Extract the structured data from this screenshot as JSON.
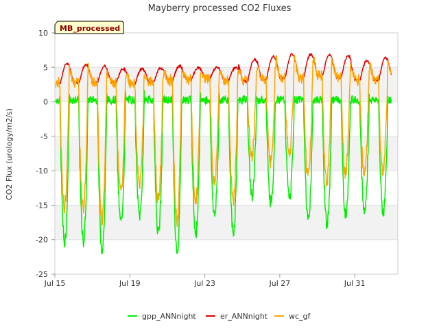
{
  "chart_data": {
    "type": "line",
    "title": "Mayberry processed CO2 Fluxes",
    "ylabel": "CO2 Flux (urology/m2/s)",
    "xlabel": "",
    "badge": "MB_processed",
    "ylim": [
      -25,
      10
    ],
    "yticks": [
      -25,
      -20,
      -15,
      -10,
      -5,
      0,
      5,
      10
    ],
    "xlim": [
      15,
      33.3
    ],
    "xticks": [
      {
        "value": 15,
        "label": "Jul 15"
      },
      {
        "value": 19,
        "label": "Jul 19"
      },
      {
        "value": 23,
        "label": "Jul 23"
      },
      {
        "value": 27,
        "label": "Jul 27"
      },
      {
        "value": 31,
        "label": "Jul 31"
      }
    ],
    "legend_position": "bottom",
    "grid": "horizontal-bands",
    "days": [
      {
        "day": 15.3,
        "gpp_min": -20.5,
        "er_max": 5.6,
        "er_min": 2.7,
        "wc_max": 5.5
      },
      {
        "day": 16.3,
        "gpp_min": -20.3,
        "er_max": 5.4,
        "er_min": 2.7,
        "wc_max": 6.2
      },
      {
        "day": 17.3,
        "gpp_min": -21.5,
        "er_max": 5.2,
        "er_min": 2.9,
        "wc_max": 4.5
      },
      {
        "day": 18.3,
        "gpp_min": -17.5,
        "er_max": 4.8,
        "er_min": 2.9,
        "wc_max": 3.5
      },
      {
        "day": 19.3,
        "gpp_min": -16.5,
        "er_max": 4.8,
        "er_min": 2.7,
        "wc_max": 4.0
      },
      {
        "day": 20.3,
        "gpp_min": -19.0,
        "er_max": 4.9,
        "er_min": 2.9,
        "wc_max": 3.5
      },
      {
        "day": 21.3,
        "gpp_min": -21.8,
        "er_max": 5.2,
        "er_min": 3.1,
        "wc_max": 4.5
      },
      {
        "day": 22.3,
        "gpp_min": -19.0,
        "er_max": 5.0,
        "er_min": 3.2,
        "wc_max": 4.3
      },
      {
        "day": 23.3,
        "gpp_min": -16.5,
        "er_max": 5.0,
        "er_min": 3.5,
        "wc_max": 4.0
      },
      {
        "day": 24.3,
        "gpp_min": -19.0,
        "er_max": 5.0,
        "er_min": 3.2,
        "wc_max": 4.5
      },
      {
        "day": 25.3,
        "gpp_min": -13.5,
        "er_max": 6.2,
        "er_min": 3.0,
        "wc_max": 4.5
      },
      {
        "day": 26.3,
        "gpp_min": -14.5,
        "er_max": 6.6,
        "er_min": 3.3,
        "wc_max": 5.0
      },
      {
        "day": 27.3,
        "gpp_min": -14.0,
        "er_max": 6.9,
        "er_min": 3.5,
        "wc_max": 8.5
      },
      {
        "day": 28.3,
        "gpp_min": -17.0,
        "er_max": 6.9,
        "er_min": 3.6,
        "wc_max": 6.0
      },
      {
        "day": 29.3,
        "gpp_min": -18.0,
        "er_max": 6.8,
        "er_min": 3.8,
        "wc_max": 6.5
      },
      {
        "day": 30.3,
        "gpp_min": -16.5,
        "er_max": 6.7,
        "er_min": 3.6,
        "wc_max": 5.5
      },
      {
        "day": 31.3,
        "gpp_min": -16.0,
        "er_max": 6.0,
        "er_min": 3.2,
        "wc_max": 4.5
      },
      {
        "day": 32.3,
        "gpp_min": -16.0,
        "er_max": 6.4,
        "er_min": 3.2,
        "wc_max": 5.8
      }
    ],
    "series": [
      {
        "name": "gpp_ANNnight",
        "color": "#00ee00"
      },
      {
        "name": "er_ANNnight",
        "color": "#dd0000"
      },
      {
        "name": "wc_gf",
        "color": "#ffa500"
      }
    ]
  }
}
